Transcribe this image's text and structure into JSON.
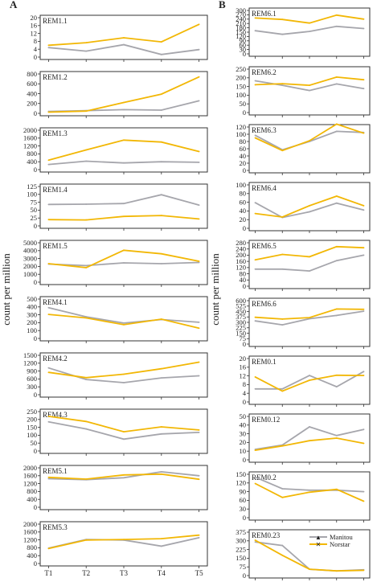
{
  "figure": {
    "panel_a_label": "A",
    "panel_b_label": "B",
    "ylabel": "count per million",
    "xticks": [
      "T1",
      "T2",
      "T3",
      "T4",
      "T5"
    ],
    "legend": [
      "Manitou",
      "Norstar"
    ],
    "colors": {
      "manitou": "#a6a6ac",
      "norstar": "#f2b705"
    }
  },
  "chart_data": [
    {
      "type": "line",
      "title": "REM1.1",
      "categories": [
        "T1",
        "T2",
        "T3",
        "T4",
        "T5"
      ],
      "ylim": [
        0,
        20
      ],
      "yticks": [
        0,
        4,
        8,
        12,
        16,
        20
      ],
      "series": [
        {
          "name": "Manitou",
          "values": [
            4.8,
            3.0,
            6.3,
            1.3,
            3.8
          ]
        },
        {
          "name": "Norstar",
          "values": [
            6.0,
            7.3,
            9.8,
            7.7,
            16.6
          ]
        }
      ]
    },
    {
      "type": "line",
      "title": "REM1.2",
      "categories": [
        "T1",
        "T2",
        "T3",
        "T4",
        "T5"
      ],
      "ylim": [
        0,
        800
      ],
      "yticks": [
        0,
        200,
        400,
        600,
        800
      ],
      "series": [
        {
          "name": "Manitou",
          "values": [
            40,
            55,
            75,
            65,
            255
          ]
        },
        {
          "name": "Norstar",
          "values": [
            25,
            45,
            220,
            390,
            740
          ]
        }
      ]
    },
    {
      "type": "line",
      "title": "REM1.3",
      "categories": [
        "T1",
        "T2",
        "T3",
        "T4",
        "T5"
      ],
      "ylim": [
        0,
        2000
      ],
      "yticks": [
        0,
        400,
        800,
        1200,
        1600,
        2000
      ],
      "series": [
        {
          "name": "Manitou",
          "values": [
            260,
            430,
            340,
            400,
            370
          ]
        },
        {
          "name": "Norstar",
          "values": [
            480,
            1000,
            1500,
            1400,
            920
          ]
        }
      ]
    },
    {
      "type": "line",
      "title": "REM1.4",
      "categories": [
        "T1",
        "T2",
        "T3",
        "T4",
        "T5"
      ],
      "ylim": [
        0,
        125
      ],
      "yticks": [
        0,
        25,
        50,
        75,
        100,
        125
      ],
      "series": [
        {
          "name": "Manitou",
          "values": [
            68,
            69,
            71,
            99,
            66
          ]
        },
        {
          "name": "Norstar",
          "values": [
            20,
            19,
            30,
            33,
            22
          ]
        }
      ]
    },
    {
      "type": "line",
      "title": "REM1.5",
      "categories": [
        "T1",
        "T2",
        "T3",
        "T4",
        "T5"
      ],
      "ylim": [
        0,
        5000
      ],
      "yticks": [
        0,
        1000,
        2000,
        3000,
        4000,
        5000
      ],
      "series": [
        {
          "name": "Manitou",
          "values": [
            2300,
            2100,
            2450,
            2350,
            2500
          ]
        },
        {
          "name": "Norstar",
          "values": [
            2350,
            1850,
            4050,
            3600,
            2650
          ]
        }
      ]
    },
    {
      "type": "line",
      "title": "REM4.1",
      "categories": [
        "T1",
        "T2",
        "T3",
        "T4",
        "T5"
      ],
      "ylim": [
        0,
        500
      ],
      "yticks": [
        0,
        100,
        200,
        300,
        400,
        500
      ],
      "series": [
        {
          "name": "Manitou",
          "values": [
            390,
            275,
            195,
            240,
            205
          ]
        },
        {
          "name": "Norstar",
          "values": [
            305,
            260,
            175,
            245,
            130
          ]
        }
      ]
    },
    {
      "type": "line",
      "title": "REM4.2",
      "categories": [
        "T1",
        "T2",
        "T3",
        "T4",
        "T5"
      ],
      "ylim": [
        0,
        1500
      ],
      "yticks": [
        0,
        300,
        600,
        900,
        1200,
        1500
      ],
      "series": [
        {
          "name": "Manitou",
          "values": [
            1020,
            580,
            460,
            640,
            720
          ]
        },
        {
          "name": "Norstar",
          "values": [
            850,
            650,
            780,
            990,
            1240
          ]
        }
      ]
    },
    {
      "type": "line",
      "title": "REM4.3",
      "categories": [
        "T1",
        "T2",
        "T3",
        "T4",
        "T5"
      ],
      "ylim": [
        0,
        250
      ],
      "yticks": [
        0,
        50,
        100,
        150,
        200,
        250
      ],
      "series": [
        {
          "name": "Manitou",
          "values": [
            185,
            140,
            75,
            108,
            118
          ]
        },
        {
          "name": "Norstar",
          "values": [
            220,
            187,
            122,
            153,
            133
          ]
        }
      ]
    },
    {
      "type": "line",
      "title": "REM5.1",
      "categories": [
        "T1",
        "T2",
        "T3",
        "T4",
        "T5"
      ],
      "ylim": [
        0,
        2000
      ],
      "yticks": [
        0,
        400,
        800,
        1200,
        1600,
        2000
      ],
      "series": [
        {
          "name": "Manitou",
          "values": [
            1450,
            1400,
            1500,
            1800,
            1600
          ]
        },
        {
          "name": "Norstar",
          "values": [
            1520,
            1430,
            1640,
            1680,
            1420
          ]
        }
      ]
    },
    {
      "type": "line",
      "title": "REM5.3",
      "categories": [
        "T1",
        "T2",
        "T3",
        "T4",
        "T5"
      ],
      "ylim": [
        0,
        2000
      ],
      "yticks": [
        0,
        400,
        800,
        1200,
        1600,
        2000
      ],
      "series": [
        {
          "name": "Manitou",
          "values": [
            780,
            1220,
            1190,
            880,
            1310
          ]
        },
        {
          "name": "Norstar",
          "values": [
            760,
            1190,
            1220,
            1260,
            1440
          ]
        }
      ]
    },
    {
      "type": "line",
      "title": "REM6.1",
      "categories": [
        "T1",
        "T2",
        "T3",
        "T4",
        "T5"
      ],
      "ylim": [
        0,
        300
      ],
      "yticks": [
        0,
        30,
        60,
        90,
        120,
        150,
        180,
        210,
        240,
        270,
        300
      ],
      "series": [
        {
          "name": "Manitou",
          "values": [
            160,
            135,
            155,
            190,
            175
          ]
        },
        {
          "name": "Norstar",
          "values": [
            248,
            238,
            213,
            268,
            240
          ]
        }
      ]
    },
    {
      "type": "line",
      "title": "REM6.2",
      "categories": [
        "T1",
        "T2",
        "T3",
        "T4",
        "T5"
      ],
      "ylim": [
        0,
        250
      ],
      "yticks": [
        0,
        50,
        100,
        150,
        200,
        250
      ],
      "series": [
        {
          "name": "Manitou",
          "values": [
            183,
            157,
            127,
            165,
            138
          ]
        },
        {
          "name": "Norstar",
          "values": [
            160,
            166,
            157,
            204,
            189
          ]
        }
      ]
    },
    {
      "type": "line",
      "title": "REM6.3",
      "categories": [
        "T1",
        "T2",
        "T3",
        "T4",
        "T5"
      ],
      "ylim": [
        0,
        120
      ],
      "yticks": [
        0,
        20,
        40,
        60,
        80,
        100,
        120
      ],
      "series": [
        {
          "name": "Manitou",
          "values": [
            97,
            57,
            80,
            108,
            105
          ]
        },
        {
          "name": "Norstar",
          "values": [
            90,
            55,
            82,
            128,
            103
          ]
        }
      ]
    },
    {
      "type": "line",
      "title": "REM6.4",
      "categories": [
        "T1",
        "T2",
        "T3",
        "T4",
        "T5"
      ],
      "ylim": [
        0,
        100
      ],
      "yticks": [
        0,
        20,
        40,
        60,
        80,
        100
      ],
      "series": [
        {
          "name": "Manitou",
          "values": [
            59,
            25,
            38,
            58,
            42
          ]
        },
        {
          "name": "Norstar",
          "values": [
            34,
            26,
            52,
            74,
            52
          ]
        }
      ]
    },
    {
      "type": "line",
      "title": "REM6.5",
      "categories": [
        "T1",
        "T2",
        "T3",
        "T4",
        "T5"
      ],
      "ylim": [
        0,
        280
      ],
      "yticks": [
        0,
        40,
        80,
        120,
        160,
        200,
        240,
        280
      ],
      "series": [
        {
          "name": "Manitou",
          "values": [
            110,
            110,
            98,
            165,
            200
          ]
        },
        {
          "name": "Norstar",
          "values": [
            170,
            205,
            190,
            255,
            248
          ]
        }
      ]
    },
    {
      "type": "line",
      "title": "REM6.6",
      "categories": [
        "T1",
        "T2",
        "T3",
        "T4",
        "T5"
      ],
      "ylim": [
        0,
        600
      ],
      "yticks": [
        0,
        75,
        150,
        225,
        300,
        375,
        450,
        525,
        600
      ],
      "series": [
        {
          "name": "Manitou",
          "values": [
            320,
            265,
            350,
            395,
            455
          ]
        },
        {
          "name": "Norstar",
          "values": [
            370,
            345,
            365,
            485,
            480
          ]
        }
      ]
    },
    {
      "type": "line",
      "title": "REM0.1",
      "categories": [
        "T1",
        "T2",
        "T3",
        "T4",
        "T5"
      ],
      "ylim": [
        0,
        20
      ],
      "yticks": [
        0,
        4,
        8,
        12,
        16,
        20
      ],
      "series": [
        {
          "name": "Manitou",
          "values": [
            6,
            6,
            12.2,
            7,
            14
          ]
        },
        {
          "name": "Norstar",
          "values": [
            11.5,
            5,
            10,
            12.3,
            12.2
          ]
        }
      ]
    },
    {
      "type": "line",
      "title": "REM0.12",
      "categories": [
        "T1",
        "T2",
        "T3",
        "T4",
        "T5"
      ],
      "ylim": [
        0,
        50
      ],
      "yticks": [
        0,
        10,
        20,
        30,
        40,
        50
      ],
      "series": [
        {
          "name": "Manitou",
          "values": [
            12,
            17,
            38,
            28,
            35
          ]
        },
        {
          "name": "Norstar",
          "values": [
            11,
            16,
            22,
            25,
            19
          ]
        }
      ]
    },
    {
      "type": "line",
      "title": "REM0.2",
      "categories": [
        "T1",
        "T2",
        "T3",
        "T4",
        "T5"
      ],
      "ylim": [
        0,
        150
      ],
      "yticks": [
        0,
        30,
        60,
        90,
        120,
        150
      ],
      "series": [
        {
          "name": "Manitou",
          "values": [
            140,
            100,
            95,
            95,
            90
          ]
        },
        {
          "name": "Norstar",
          "values": [
            118,
            70,
            88,
            98,
            57
          ]
        }
      ]
    },
    {
      "type": "line",
      "title": "REM0.23",
      "categories": [
        "T1",
        "T2",
        "T3",
        "T4",
        "T5"
      ],
      "ylim": [
        0,
        375
      ],
      "yticks": [
        0,
        75,
        150,
        225,
        300,
        375
      ],
      "series": [
        {
          "name": "Manitou",
          "values": [
            290,
            260,
            55,
            40,
            50
          ]
        },
        {
          "name": "Norstar",
          "values": [
            305,
            175,
            55,
            40,
            45
          ]
        }
      ]
    }
  ]
}
